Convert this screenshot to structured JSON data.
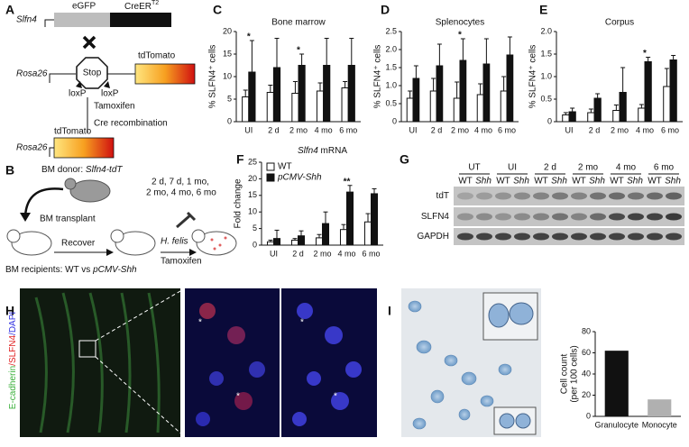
{
  "chart_data": [
    {
      "type": "bar",
      "panel": "C",
      "title": "Bone marrow",
      "ylabel": "% SLFN4⁺ cells",
      "categories": [
        "UI",
        "2 d",
        "2 mo",
        "4 mo",
        "6 mo"
      ],
      "series": [
        {
          "color": "#ffffff",
          "values": [
            5.5,
            6.5,
            6.3,
            6.8,
            7.5
          ],
          "errors": [
            1.5,
            1.6,
            2.6,
            1.8,
            1.4
          ]
        },
        {
          "color": "#111111",
          "values": [
            11,
            12,
            12.5,
            12.5,
            12.5
          ],
          "errors": [
            7,
            6.5,
            2.5,
            6,
            6
          ]
        }
      ],
      "stars": [
        "*",
        null,
        "*",
        null,
        null
      ],
      "ylim": [
        0,
        20
      ],
      "yticks": [
        0,
        5,
        10,
        15,
        20
      ]
    },
    {
      "type": "bar",
      "panel": "D",
      "title": "Splenocytes",
      "ylabel": "% SLFN4⁺ cells",
      "categories": [
        "UI",
        "2 d",
        "2 mo",
        "4 mo",
        "6 mo"
      ],
      "series": [
        {
          "color": "#ffffff",
          "values": [
            0.65,
            0.85,
            0.65,
            0.75,
            0.85
          ],
          "errors": [
            0.2,
            0.35,
            0.45,
            0.3,
            0.4
          ]
        },
        {
          "color": "#111111",
          "values": [
            1.2,
            1.55,
            1.7,
            1.6,
            1.85
          ],
          "errors": [
            0.35,
            0.6,
            0.6,
            0.7,
            0.5
          ]
        }
      ],
      "stars": [
        null,
        null,
        "*",
        null,
        null
      ],
      "ylim": [
        0,
        2.5
      ],
      "yticks": [
        0,
        0.5,
        {
          "value": 1,
          "label": "1.0"
        },
        1.5,
        {
          "value": 2,
          "label": "2.0"
        },
        2.5
      ]
    },
    {
      "type": "bar",
      "panel": "E",
      "title": "Corpus",
      "ylabel": "% SLFN4⁺ cells",
      "categories": [
        "UI",
        "2 d",
        "2 mo",
        "4 mo",
        "6 mo"
      ],
      "series": [
        {
          "color": "#ffffff",
          "values": [
            0.15,
            0.2,
            0.25,
            0.3,
            0.78
          ],
          "errors": [
            0.05,
            0.08,
            0.12,
            0.08,
            0.4
          ]
        },
        {
          "color": "#111111",
          "values": [
            0.22,
            0.52,
            0.65,
            1.33,
            1.37
          ],
          "errors": [
            0.08,
            0.1,
            0.55,
            0.1,
            0.1
          ]
        }
      ],
      "stars": [
        null,
        null,
        null,
        "*",
        null
      ],
      "ylim": [
        0,
        2
      ],
      "yticks": [
        0,
        0.5,
        {
          "value": 1,
          "label": "1.0"
        },
        1.5,
        {
          "value": 2,
          "label": "2.0"
        }
      ]
    },
    {
      "type": "bar",
      "panel": "F",
      "title": [
        "Slfn4",
        "mRNA"
      ],
      "ylabel": "Fold change",
      "categories": [
        "UI",
        "2 d",
        "2 mo",
        "4 mo",
        "6 mo"
      ],
      "series": [
        {
          "name": "WT",
          "color": "#ffffff",
          "values": [
            1,
            1.5,
            2.2,
            4.7,
            7
          ],
          "errors": [
            0.5,
            0.5,
            1,
            1.5,
            2.5
          ]
        },
        {
          "name": "pCMV-Shh",
          "color": "#111111",
          "values": [
            2,
            2.8,
            6.5,
            16,
            15.5
          ],
          "errors": [
            2.5,
            1.5,
            3.5,
            2,
            1.5
          ]
        }
      ],
      "stars": [
        null,
        null,
        null,
        "**",
        null
      ],
      "legend": "top-left",
      "ylim": [
        0,
        25
      ],
      "yticks": [
        0,
        5,
        10,
        15,
        20,
        25
      ]
    },
    {
      "type": "bar",
      "panel": "I",
      "ylabel": [
        "Cell count",
        "(per 100 cells)"
      ],
      "categories": [
        "Granulocyte",
        "Monocyte"
      ],
      "values": [
        62,
        16
      ],
      "colors": [
        "#111111",
        "#b0b0b0"
      ],
      "ylim": [
        0,
        80
      ],
      "yticks": [
        0,
        20,
        40,
        60,
        80
      ]
    }
  ],
  "diagram": {
    "A": {
      "panel": "A",
      "gene": "Slfn4",
      "egfp": "eGFP",
      "creer": "CreER",
      "creer_sup": "T2",
      "locus": "Rosa26",
      "stop": "Stop",
      "loxp": "loxP",
      "reporter": "tdTomato",
      "step1": "Tamoxifen",
      "step2": "Cre recombination"
    },
    "B": {
      "panel": "B",
      "donor": "BM donor: ",
      "donor_strain": "Slfn4-tdT",
      "transplant": "BM transplant",
      "recover": "Recover",
      "infection": "H. felis",
      "drug": "Tamoxifen",
      "times": [
        "2 d, 7 d, 1 mo,",
        "2 mo, 4 mo, 6 mo"
      ],
      "recipients": "BM recipients: WT vs ",
      "recipient_strain": "pCMV-Shh"
    },
    "G": {
      "panel": "G",
      "groups": [
        "UT",
        "UI",
        "2 d",
        "2 mo",
        "4 mo",
        "6 mo"
      ],
      "lanes": [
        "WT",
        "Shh"
      ],
      "rows": [
        "tdT",
        "SLFN4",
        "GAPDH"
      ]
    },
    "H": {
      "panel": "H",
      "stain": [
        "E-cadherin",
        "/SLFN4",
        "/DAPI"
      ],
      "stars": [
        "*",
        "*",
        "*",
        "*"
      ]
    }
  }
}
